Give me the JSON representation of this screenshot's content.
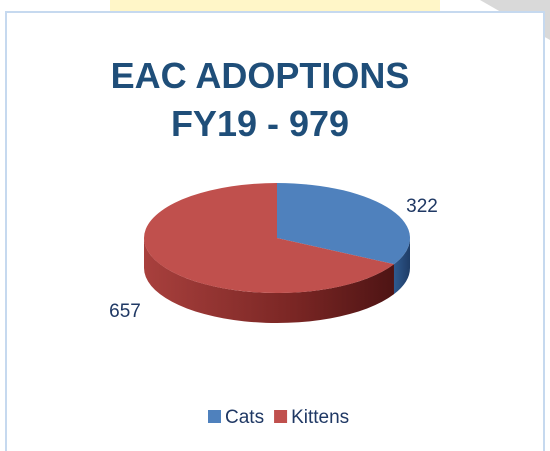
{
  "chart_data": {
    "type": "pie",
    "title": "EAC ADOPTIONS\nFY19 - 979",
    "categories": [
      "Cats",
      "Kittens"
    ],
    "values": [
      322,
      657
    ],
    "colors": [
      "#4f81bd",
      "#c0504d"
    ],
    "legend": "bottom"
  }
}
